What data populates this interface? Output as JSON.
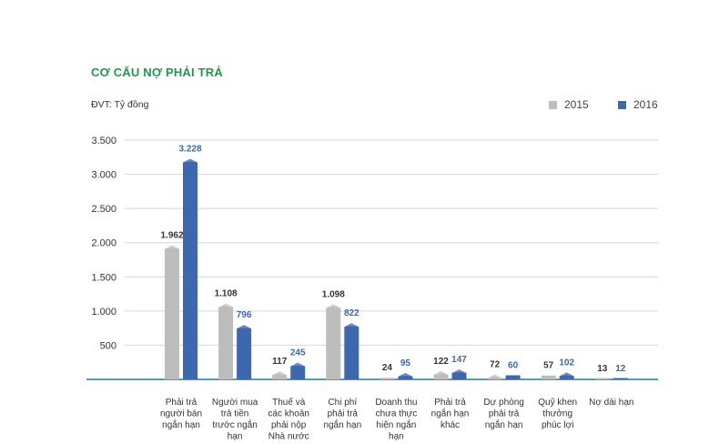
{
  "chart_data": {
    "type": "bar",
    "title": "CƠ CẤU NỢ PHẢI TRẢ",
    "unit_label": "ĐVT: Tỷ đồng",
    "ylim": [
      0,
      3500
    ],
    "yticks": [
      "3.500",
      "3.000",
      "2.500",
      "2.000",
      "1.500",
      "1.000",
      "500"
    ],
    "ytick_values": [
      3500,
      3000,
      2500,
      2000,
      1500,
      1000,
      500
    ],
    "grid": true,
    "legend_position": "top-right",
    "categories": [
      [
        "Phải trả",
        "người bán",
        "ngắn hạn"
      ],
      [
        "Người mua",
        "trả tiền",
        "trước ngắn",
        "hạn"
      ],
      [
        "Thuế và",
        "các khoản",
        "phải nộp",
        "Nhà nước"
      ],
      [
        "Chi phí",
        "phải trả",
        "ngắn hạn"
      ],
      [
        "Doanh thu",
        "chưa thực",
        "hiện ngắn",
        "hạn"
      ],
      [
        "Phải trả",
        "ngắn hạn",
        "khác"
      ],
      [
        "Dự phòng",
        "phải trả",
        "ngắn hạn"
      ],
      [
        "Quỹ khen",
        "thưởng",
        "phúc lợi"
      ],
      [
        "Nợ dài hạn"
      ]
    ],
    "series": [
      {
        "name": "2015",
        "color": "#bdbdbd",
        "label_color": "#333333",
        "values": [
          1962,
          1108,
          117,
          1098,
          24,
          122,
          72,
          57,
          13
        ],
        "labels": [
          "1.962",
          "1.108",
          "117",
          "1.098",
          "24",
          "122",
          "72",
          "57",
          "13"
        ]
      },
      {
        "name": "2016",
        "color": "#3d68b0",
        "label_color": "#3d68b0",
        "values": [
          3228,
          796,
          245,
          822,
          95,
          147,
          60,
          102,
          12
        ],
        "labels": [
          "3.228",
          "796",
          "245",
          "822",
          "95",
          "147",
          "60",
          "102",
          "12"
        ]
      }
    ]
  }
}
